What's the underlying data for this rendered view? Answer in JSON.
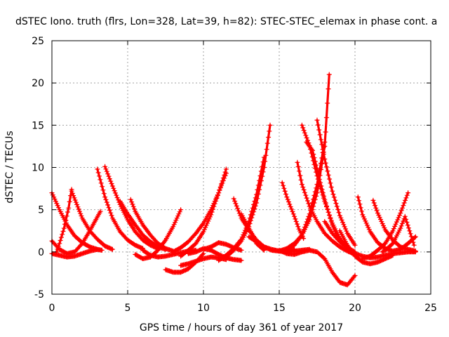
{
  "chart_data": {
    "type": "scatter",
    "title": "dSTEC Iono. truth (flrs, Lon=328, Lat=39, h=82): STEC-STEC_elemax in phase cont. a",
    "xlabel": "GPS time / hours of day 361 of year 2017",
    "ylabel": "dSTEC  / TECUs",
    "xlim": [
      0,
      25
    ],
    "ylim": [
      -5,
      25
    ],
    "xticks": [
      0,
      5,
      10,
      15,
      20,
      25
    ],
    "yticks": [
      -5,
      0,
      5,
      10,
      15,
      20,
      25
    ],
    "grid": true,
    "marker": "+",
    "color": "#ff0000",
    "series": [
      {
        "x": [
          0.0,
          0.5,
          1.0,
          1.5,
          2.0,
          2.5,
          3.0,
          3.3
        ],
        "y": [
          7.0,
          5.0,
          3.2,
          1.9,
          1.1,
          0.6,
          0.3,
          0.2
        ]
      },
      {
        "x": [
          0.0,
          0.5,
          1.0,
          1.5,
          2.0,
          2.5,
          3.2
        ],
        "y": [
          1.3,
          0.3,
          -0.2,
          0.0,
          1.0,
          2.5,
          4.8
        ]
      },
      {
        "x": [
          0.0,
          0.5,
          1.0,
          1.5,
          2.0,
          2.5,
          3.0
        ],
        "y": [
          -0.2,
          -0.4,
          -0.6,
          -0.5,
          -0.2,
          0.1,
          0.3
        ]
      },
      {
        "x": [
          0.3,
          0.5,
          0.8,
          1.1,
          1.3
        ],
        "y": [
          0.0,
          1.0,
          2.8,
          5.2,
          7.4
        ]
      },
      {
        "x": [
          1.3,
          2.0,
          2.5,
          3.0,
          3.5,
          4.0
        ],
        "y": [
          7.2,
          4.0,
          2.5,
          1.5,
          0.7,
          0.3
        ]
      },
      {
        "x": [
          3.0,
          3.5,
          4.0,
          4.5,
          5.0,
          5.5,
          6.0
        ],
        "y": [
          9.8,
          6.5,
          4.0,
          2.4,
          1.4,
          0.8,
          0.4
        ]
      },
      {
        "x": [
          3.5,
          4.0,
          4.5,
          5.0,
          5.5,
          6.0,
          6.5,
          7.0
        ],
        "y": [
          10.1,
          7.8,
          5.6,
          3.8,
          2.4,
          1.4,
          0.8,
          0.4
        ]
      },
      {
        "x": [
          4.5,
          5.0,
          5.5,
          6.0,
          6.5,
          7.0,
          7.5
        ],
        "y": [
          6.0,
          4.5,
          3.2,
          2.0,
          1.2,
          0.6,
          0.3
        ]
      },
      {
        "x": [
          5.2,
          5.5,
          6.0,
          6.5,
          7.0,
          7.5,
          8.0
        ],
        "y": [
          6.2,
          4.8,
          3.2,
          2.0,
          1.0,
          0.4,
          0.1
        ]
      },
      {
        "x": [
          6.0,
          6.5,
          7.0,
          7.5,
          8.0,
          8.5,
          9.0,
          9.5
        ],
        "y": [
          0.2,
          -0.4,
          -0.6,
          -0.5,
          -0.3,
          -0.1,
          0.1,
          0.2
        ]
      },
      {
        "x": [
          5.5,
          6.0,
          6.5,
          7.0,
          7.5,
          8.0,
          8.5
        ],
        "y": [
          -0.3,
          -0.8,
          -0.6,
          0.2,
          1.4,
          3.0,
          5.0
        ]
      },
      {
        "x": [
          7.5,
          8.0,
          8.5,
          9.0,
          9.5,
          10.0
        ],
        "y": [
          -2.1,
          -2.4,
          -2.4,
          -2.0,
          -1.2,
          -0.2
        ]
      },
      {
        "x": [
          8.5,
          9.0,
          9.5,
          10.0,
          10.5,
          11.0,
          11.5
        ],
        "y": [
          -1.6,
          -1.4,
          -1.1,
          -0.8,
          -0.6,
          -0.7,
          -0.9
        ]
      },
      {
        "x": [
          8.0,
          8.5,
          9.0,
          9.5,
          10.0,
          10.5,
          11.0,
          11.5
        ],
        "y": [
          0.0,
          0.5,
          1.2,
          2.2,
          3.4,
          5.0,
          7.0,
          9.3
        ]
      },
      {
        "x": [
          8.5,
          9.0,
          9.5,
          10.0,
          10.5,
          11.0,
          11.5
        ],
        "y": [
          -0.5,
          0.2,
          1.0,
          2.4,
          4.4,
          7.0,
          9.8
        ]
      },
      {
        "x": [
          9.0,
          9.5,
          10.0,
          10.5,
          11.0,
          11.5,
          12.0,
          12.5
        ],
        "y": [
          -0.2,
          0.0,
          0.4,
          0.2,
          -0.3,
          -0.7,
          -0.9,
          -1.0
        ]
      },
      {
        "x": [
          10.0,
          10.5,
          11.0,
          11.5,
          12.0,
          12.5
        ],
        "y": [
          0.3,
          0.6,
          1.1,
          0.9,
          0.5,
          0.2
        ]
      },
      {
        "x": [
          11.0,
          11.5,
          12.0,
          12.5,
          13.0,
          13.5,
          14.0
        ],
        "y": [
          -1.0,
          -0.4,
          0.4,
          1.5,
          3.6,
          6.8,
          11.2
        ]
      },
      {
        "x": [
          11.5,
          12.0,
          12.5,
          13.0,
          13.5,
          14.0,
          14.4
        ],
        "y": [
          -0.6,
          0.2,
          1.3,
          3.0,
          5.8,
          10.0,
          15.0
        ]
      },
      {
        "x": [
          12.0,
          12.5,
          13.0,
          13.5,
          14.0,
          14.5,
          15.0,
          15.5,
          16.0
        ],
        "y": [
          6.3,
          4.0,
          2.6,
          1.4,
          0.6,
          0.2,
          0.1,
          0.2,
          0.3
        ]
      },
      {
        "x": [
          12.5,
          13.0,
          13.3,
          13.5,
          14.0
        ],
        "y": [
          4.5,
          2.8,
          1.8,
          1.0,
          0.2
        ]
      },
      {
        "x": [
          13.0,
          13.5,
          14.0,
          14.5,
          15.0,
          15.5,
          16.0,
          16.5,
          17.0
        ],
        "y": [
          1.8,
          1.2,
          0.6,
          0.3,
          0.1,
          0.0,
          0.1,
          0.2,
          0.3
        ]
      },
      {
        "x": [
          15.0,
          15.5,
          16.0,
          16.5,
          17.0,
          17.5,
          18.0,
          18.5,
          19.0,
          19.5,
          20.0
        ],
        "y": [
          0.2,
          -0.2,
          -0.3,
          0.0,
          0.2,
          0.0,
          -0.8,
          -2.4,
          -3.6,
          -3.9,
          -2.8
        ]
      },
      {
        "x": [
          15.0,
          15.5,
          16.0,
          16.5,
          17.0,
          17.5,
          18.0,
          18.3
        ],
        "y": [
          0.1,
          0.4,
          1.0,
          2.0,
          3.8,
          7.0,
          12.5,
          21.0
        ]
      },
      {
        "x": [
          15.5,
          16.0,
          16.5,
          17.0,
          17.5,
          18.0
        ],
        "y": [
          0.2,
          0.8,
          2.0,
          4.5,
          8.0,
          13.0
        ]
      },
      {
        "x": [
          15.2,
          15.5,
          16.0,
          16.3,
          16.6
        ],
        "y": [
          8.2,
          6.5,
          4.2,
          2.7,
          1.6
        ]
      },
      {
        "x": [
          16.5,
          17.0,
          17.5,
          18.0,
          18.5,
          19.0,
          19.5,
          20.0
        ],
        "y": [
          15.0,
          12.6,
          9.0,
          6.0,
          3.4,
          1.6,
          0.4,
          -0.3
        ]
      },
      {
        "x": [
          16.8,
          17.2,
          17.6,
          18.0,
          18.5,
          19.0
        ],
        "y": [
          13.0,
          12.0,
          9.0,
          6.2,
          3.2,
          1.2
        ]
      },
      {
        "x": [
          17.5,
          18.0,
          18.5,
          19.0,
          19.5,
          20.0
        ],
        "y": [
          15.6,
          11.0,
          7.2,
          4.3,
          2.2,
          0.8
        ]
      },
      {
        "x": [
          16.2,
          16.5,
          17.0,
          17.5,
          18.0,
          18.5,
          19.0,
          19.5,
          20.0
        ],
        "y": [
          10.6,
          8.0,
          5.4,
          3.6,
          2.2,
          1.3,
          0.6,
          0.1,
          -0.3
        ]
      },
      {
        "x": [
          18.0,
          18.5,
          19.0,
          19.5,
          20.0
        ],
        "y": [
          3.6,
          2.2,
          1.2,
          0.5,
          0.0
        ]
      },
      {
        "x": [
          19.0,
          19.5,
          20.0,
          20.5,
          21.0,
          21.5,
          22.0,
          22.5
        ],
        "y": [
          2.5,
          0.8,
          -0.5,
          -1.2,
          -1.4,
          -1.2,
          -0.8,
          -0.4
        ]
      },
      {
        "x": [
          19.5,
          20.0,
          20.5,
          21.0,
          21.5,
          22.0,
          22.5,
          23.0,
          23.5,
          24.0
        ],
        "y": [
          0.2,
          -0.2,
          -0.5,
          -0.7,
          -0.6,
          -0.4,
          -0.2,
          -0.1,
          0.0,
          0.0
        ]
      },
      {
        "x": [
          20.2,
          20.5,
          21.0,
          21.5,
          22.0,
          22.5,
          23.0,
          23.5,
          24.0
        ],
        "y": [
          6.5,
          4.4,
          2.4,
          1.1,
          0.4,
          0.1,
          0.3,
          1.0,
          1.8
        ]
      },
      {
        "x": [
          21.2,
          21.5,
          22.0,
          22.5,
          23.0,
          23.5,
          24.0
        ],
        "y": [
          6.1,
          4.6,
          2.6,
          1.4,
          0.6,
          0.3,
          0.1
        ]
      },
      {
        "x": [
          20.5,
          21.0,
          21.5,
          22.0,
          22.5,
          23.0,
          23.5
        ],
        "y": [
          -0.8,
          -0.5,
          0.2,
          1.0,
          2.5,
          4.6,
          7.0
        ]
      },
      {
        "x": [
          21.8,
          22.0,
          22.5,
          23.0,
          23.3,
          23.6,
          23.9
        ],
        "y": [
          0.0,
          0.2,
          1.0,
          2.8,
          4.2,
          2.5,
          0.8
        ]
      }
    ]
  }
}
